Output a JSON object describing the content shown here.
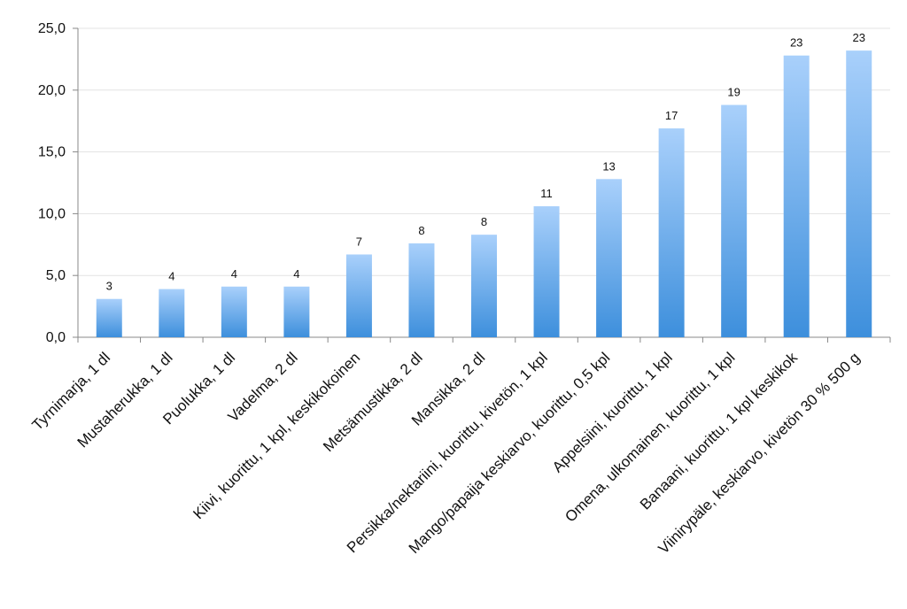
{
  "chart_data": {
    "type": "bar",
    "title": "",
    "xlabel": "",
    "ylabel": "",
    "ylim": [
      0,
      25
    ],
    "yticks": [
      "0,0",
      "5,0",
      "10,0",
      "15,0",
      "20,0",
      "25,0"
    ],
    "grid": true,
    "legend": "none",
    "bar_color_top": "#a9d0fb",
    "bar_color_bottom": "#3d8fdc",
    "grid_color": "#e3e3e3",
    "categories": [
      "Tyrnimarja, 1 dl",
      "Mustaherukka, 1 dl",
      "Puolukka, 1 dl",
      "Vadelma, 2 dl",
      "Kiivi, kuorittu, 1 kpl, keskikokoinen",
      "Metsämustikka, 2 dl",
      "Mansikka, 2 dl",
      "Persikka/nektariini, kuorittu, kivetön, 1 kpl",
      "Mango/papaija keskiarvo, kuorittu, 0,5 kpl",
      "Appelsiini, kuorittu, 1 kpl",
      "Omena, ulkomainen, kuorittu, 1 kpl",
      "Banaani, kuorittu, 1 kpl keskikok",
      "Viinirypäle, keskiarvo, kivetön 30 % 500 g"
    ],
    "values": [
      3.1,
      3.9,
      4.1,
      4.1,
      6.7,
      7.6,
      8.3,
      10.6,
      12.8,
      16.9,
      18.8,
      22.8,
      23.2
    ],
    "data_labels": [
      "3",
      "4",
      "4",
      "4",
      "7",
      "8",
      "8",
      "11",
      "13",
      "17",
      "19",
      "23",
      "23"
    ]
  }
}
